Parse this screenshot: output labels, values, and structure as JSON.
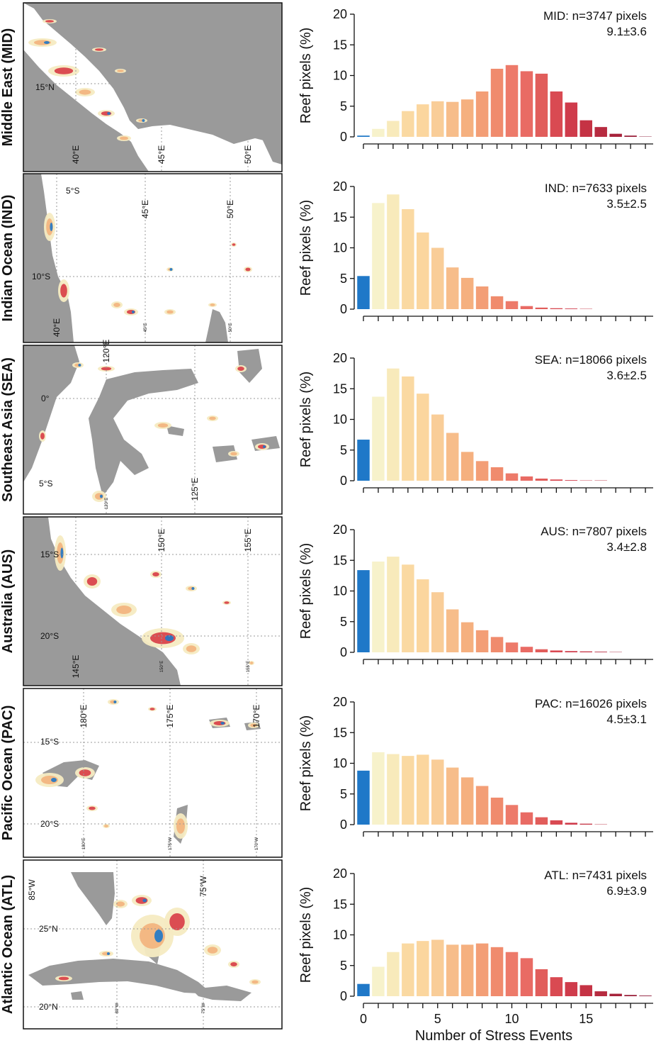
{
  "colors": {
    "land": "#9a9a9a",
    "ocean": "#ffffff",
    "zero_bar": "#1f78c8",
    "reef_blue": "#1f78c8",
    "reef_low": "#f6ebc2",
    "reef_mid": "#f3b27c",
    "reef_high": "#d83c45",
    "grid": "#999999",
    "bar_palette": [
      "#1f78c8",
      "#f7f2cb",
      "#f8eabb",
      "#fad9a2",
      "#fbd69e",
      "#f9cd98",
      "#f7bd8a",
      "#f5b07f",
      "#f39e76",
      "#f08b6d",
      "#ed7a6a",
      "#e96b64",
      "#e15d5b",
      "#d94a52",
      "#cf3b4b",
      "#c53344",
      "#b72b40",
      "#a7233b",
      "#981c37",
      "#8a1534"
    ]
  },
  "maps": [
    {
      "label": "Middle East (MID)",
      "lat_labels": [
        "15°N"
      ],
      "lon_labels": [
        "40°E",
        "45°E",
        "50°E"
      ],
      "minor_labels": []
    },
    {
      "label": "Indian Ocean (IND)",
      "lat_labels": [
        "5°S",
        "10°S"
      ],
      "lon_labels": [
        "45°E",
        "50°E",
        "40°E"
      ],
      "minor_labels": [
        "45°E",
        "50°E"
      ]
    },
    {
      "label": "Southeast Asia (SEA)",
      "lat_labels": [
        "0°",
        "5°S"
      ],
      "lon_labels": [
        "120°E",
        "125°E"
      ],
      "minor_labels": [
        "120°E"
      ]
    },
    {
      "label": "Australia (AUS)",
      "lat_labels": [
        "15°S",
        "20°S"
      ],
      "lon_labels": [
        "150°E",
        "155°E",
        "145°E"
      ],
      "minor_labels": [
        "150°E",
        "155°E"
      ]
    },
    {
      "label": "Pacific Ocean (PAC)",
      "lat_labels": [
        "15°S",
        "20°S"
      ],
      "lon_labels": [
        "180°E",
        "175°E",
        "170°E"
      ],
      "minor_labels": [
        "180°E",
        "175°W",
        "170°W"
      ]
    },
    {
      "label": "Atlantic Ocean (ATL)",
      "lat_labels": [
        "25°N",
        "20°N"
      ],
      "lon_labels": [
        "85°W",
        "75°W"
      ],
      "minor_labels": [
        "80°W",
        "75°W"
      ]
    }
  ],
  "chart_data": [
    {
      "type": "bar",
      "region": "MID",
      "annotation_line1": "MID: n=3747 pixels",
      "annotation_line2": "9.1±3.6",
      "x": [
        0,
        1,
        2,
        3,
        4,
        5,
        6,
        7,
        8,
        9,
        10,
        11,
        12,
        13,
        14,
        15,
        16,
        17,
        18,
        19
      ],
      "values": [
        0.2,
        1.3,
        2.6,
        4.2,
        5.3,
        5.8,
        5.7,
        6.1,
        7.4,
        11.1,
        11.7,
        10.7,
        10.3,
        7.4,
        5.6,
        2.7,
        1.6,
        0.5,
        0.2,
        0.05
      ],
      "ylabel": "Reef pixels (%)",
      "xlabel": "",
      "ylim": [
        0,
        20
      ],
      "yticks": [
        0,
        5,
        10,
        15,
        20
      ]
    },
    {
      "type": "bar",
      "region": "IND",
      "annotation_line1": "IND: n=7633 pixels",
      "annotation_line2": "3.5±2.5",
      "x": [
        0,
        1,
        2,
        3,
        4,
        5,
        6,
        7,
        8,
        9,
        10,
        11,
        12,
        13,
        14,
        15,
        16,
        17,
        18,
        19
      ],
      "values": [
        5.4,
        17.3,
        18.7,
        16.3,
        12.5,
        10.0,
        6.8,
        5.1,
        3.7,
        2.1,
        1.3,
        0.5,
        0.25,
        0.15,
        0.1,
        0.05,
        0,
        0,
        0,
        0
      ],
      "ylabel": "Reef pixels (%)",
      "xlabel": "",
      "ylim": [
        0,
        20
      ],
      "yticks": [
        0,
        5,
        10,
        15,
        20
      ]
    },
    {
      "type": "bar",
      "region": "SEA",
      "annotation_line1": "SEA: n=18066 pixels",
      "annotation_line2": "3.6±2.5",
      "x": [
        0,
        1,
        2,
        3,
        4,
        5,
        6,
        7,
        8,
        9,
        10,
        11,
        12,
        13,
        14,
        15,
        16,
        17,
        18,
        19
      ],
      "values": [
        6.7,
        13.7,
        18.3,
        17.0,
        14.2,
        10.8,
        7.8,
        4.7,
        3.2,
        2.2,
        1.2,
        0.7,
        0.35,
        0.2,
        0.1,
        0.05,
        0.05,
        0,
        0,
        0
      ],
      "ylabel": "Reef pixels (%)",
      "xlabel": "",
      "ylim": [
        0,
        20
      ],
      "yticks": [
        0,
        5,
        10,
        15,
        20
      ]
    },
    {
      "type": "bar",
      "region": "AUS",
      "annotation_line1": "AUS: n=7807 pixels",
      "annotation_line2": "3.4±2.8",
      "x": [
        0,
        1,
        2,
        3,
        4,
        5,
        6,
        7,
        8,
        9,
        10,
        11,
        12,
        13,
        14,
        15,
        16,
        17,
        18,
        19
      ],
      "values": [
        13.4,
        14.8,
        15.6,
        14.3,
        11.9,
        9.8,
        7.0,
        4.9,
        3.6,
        2.5,
        1.6,
        0.9,
        0.5,
        0.3,
        0.2,
        0.15,
        0.1,
        0.05,
        0,
        0
      ],
      "ylabel": "Reef pixels (%)",
      "xlabel": "",
      "ylim": [
        0,
        20
      ],
      "yticks": [
        0,
        5,
        10,
        15,
        20
      ]
    },
    {
      "type": "bar",
      "region": "PAC",
      "annotation_line1": "PAC: n=16026 pixels",
      "annotation_line2": "4.5±3.1",
      "x": [
        0,
        1,
        2,
        3,
        4,
        5,
        6,
        7,
        8,
        9,
        10,
        11,
        12,
        13,
        14,
        15,
        16,
        17,
        18,
        19
      ],
      "values": [
        8.8,
        11.8,
        11.5,
        11.2,
        11.4,
        10.6,
        9.3,
        7.7,
        6.3,
        4.4,
        3.2,
        2.0,
        1.2,
        0.7,
        0.3,
        0.15,
        0.05,
        0,
        0,
        0
      ],
      "ylabel": "Reef pixels (%)",
      "xlabel": "",
      "ylim": [
        0,
        20
      ],
      "yticks": [
        0,
        5,
        10,
        15,
        20
      ]
    },
    {
      "type": "bar",
      "region": "ATL",
      "annotation_line1": "ATL: n=7431 pixels",
      "annotation_line2": "6.9±3.9",
      "x": [
        0,
        1,
        2,
        3,
        4,
        5,
        6,
        7,
        8,
        9,
        10,
        11,
        12,
        13,
        14,
        15,
        16,
        17,
        18,
        19
      ],
      "values": [
        2.0,
        4.8,
        7.2,
        8.6,
        9.0,
        9.2,
        8.4,
        8.4,
        8.6,
        8.0,
        7.2,
        6.2,
        4.4,
        3.1,
        2.3,
        1.8,
        0.8,
        0.4,
        0.2,
        0.1
      ],
      "ylabel": "Reef pixels (%)",
      "xlabel": "Number of Stress Events",
      "ylim": [
        0,
        20
      ],
      "yticks": [
        0,
        5,
        10,
        15,
        20
      ],
      "xticks": [
        0,
        5,
        10,
        15
      ]
    }
  ]
}
